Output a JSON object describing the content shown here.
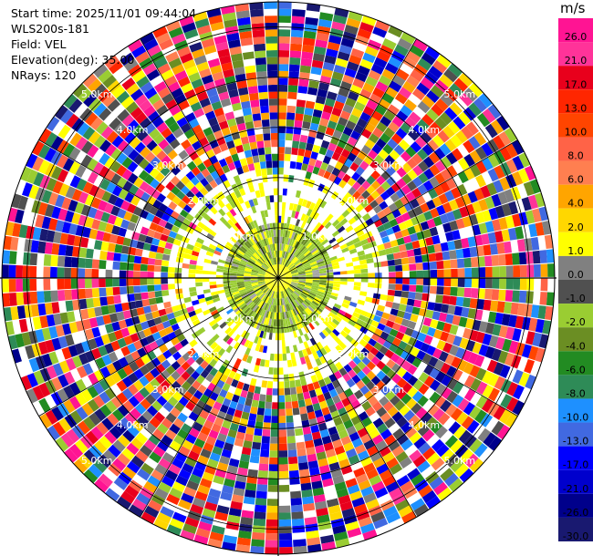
{
  "meta": {
    "start_time": "Start time: 2025/11/01 09:44:04",
    "instrument": "WLS200s-181",
    "field": "Field: VEL",
    "elevation": "Elevation(deg): 35.00",
    "nrays": "NRays: 120"
  },
  "colorbar": {
    "unit": "m/s",
    "levels": [
      "26.0",
      "21.0",
      "17.0",
      "13.0",
      "10.0",
      "8.0",
      "6.0",
      "4.0",
      "2.0",
      "1.0",
      "0.0",
      "-1.0",
      "-2.0",
      "-4.0",
      "-6.0",
      "-8.0",
      "-10.0",
      "-13.0",
      "-17.0",
      "-21.0",
      "-26.0",
      "-30.0"
    ],
    "colors": [
      "#ff1493",
      "#ff3399",
      "#e8001c",
      "#ff2600",
      "#ff4500",
      "#ff6347",
      "#ff7f50",
      "#ffa500",
      "#ffd700",
      "#ffff00",
      "#808080",
      "#505050",
      "#9acd32",
      "#6b8e23",
      "#228b22",
      "#2e8b57",
      "#1e90ff",
      "#4169e1",
      "#0000ff",
      "#0000cd",
      "#00008b",
      "#191970"
    ]
  },
  "chart_data": {
    "type": "ppi",
    "field": "VEL",
    "units": "m/s",
    "elevation_deg": 35.0,
    "nrays": 120,
    "range_rings_km": [
      1.0,
      2.0,
      3.0,
      4.0,
      5.0
    ],
    "range_ring_labels": [
      "1.0km",
      "2.0km",
      "3.0km",
      "4.0km",
      "5.0km"
    ],
    "color_levels": [
      -30,
      -26,
      -21,
      -17,
      -13,
      -10,
      -8,
      -6,
      -4,
      -2,
      -1,
      0,
      1,
      2,
      4,
      6,
      8,
      10,
      13,
      17,
      21,
      26
    ],
    "max_range_km": 5.5,
    "spokes_deg": [
      0,
      30,
      60,
      90,
      120,
      150,
      180,
      210,
      240,
      270,
      300,
      330
    ]
  }
}
